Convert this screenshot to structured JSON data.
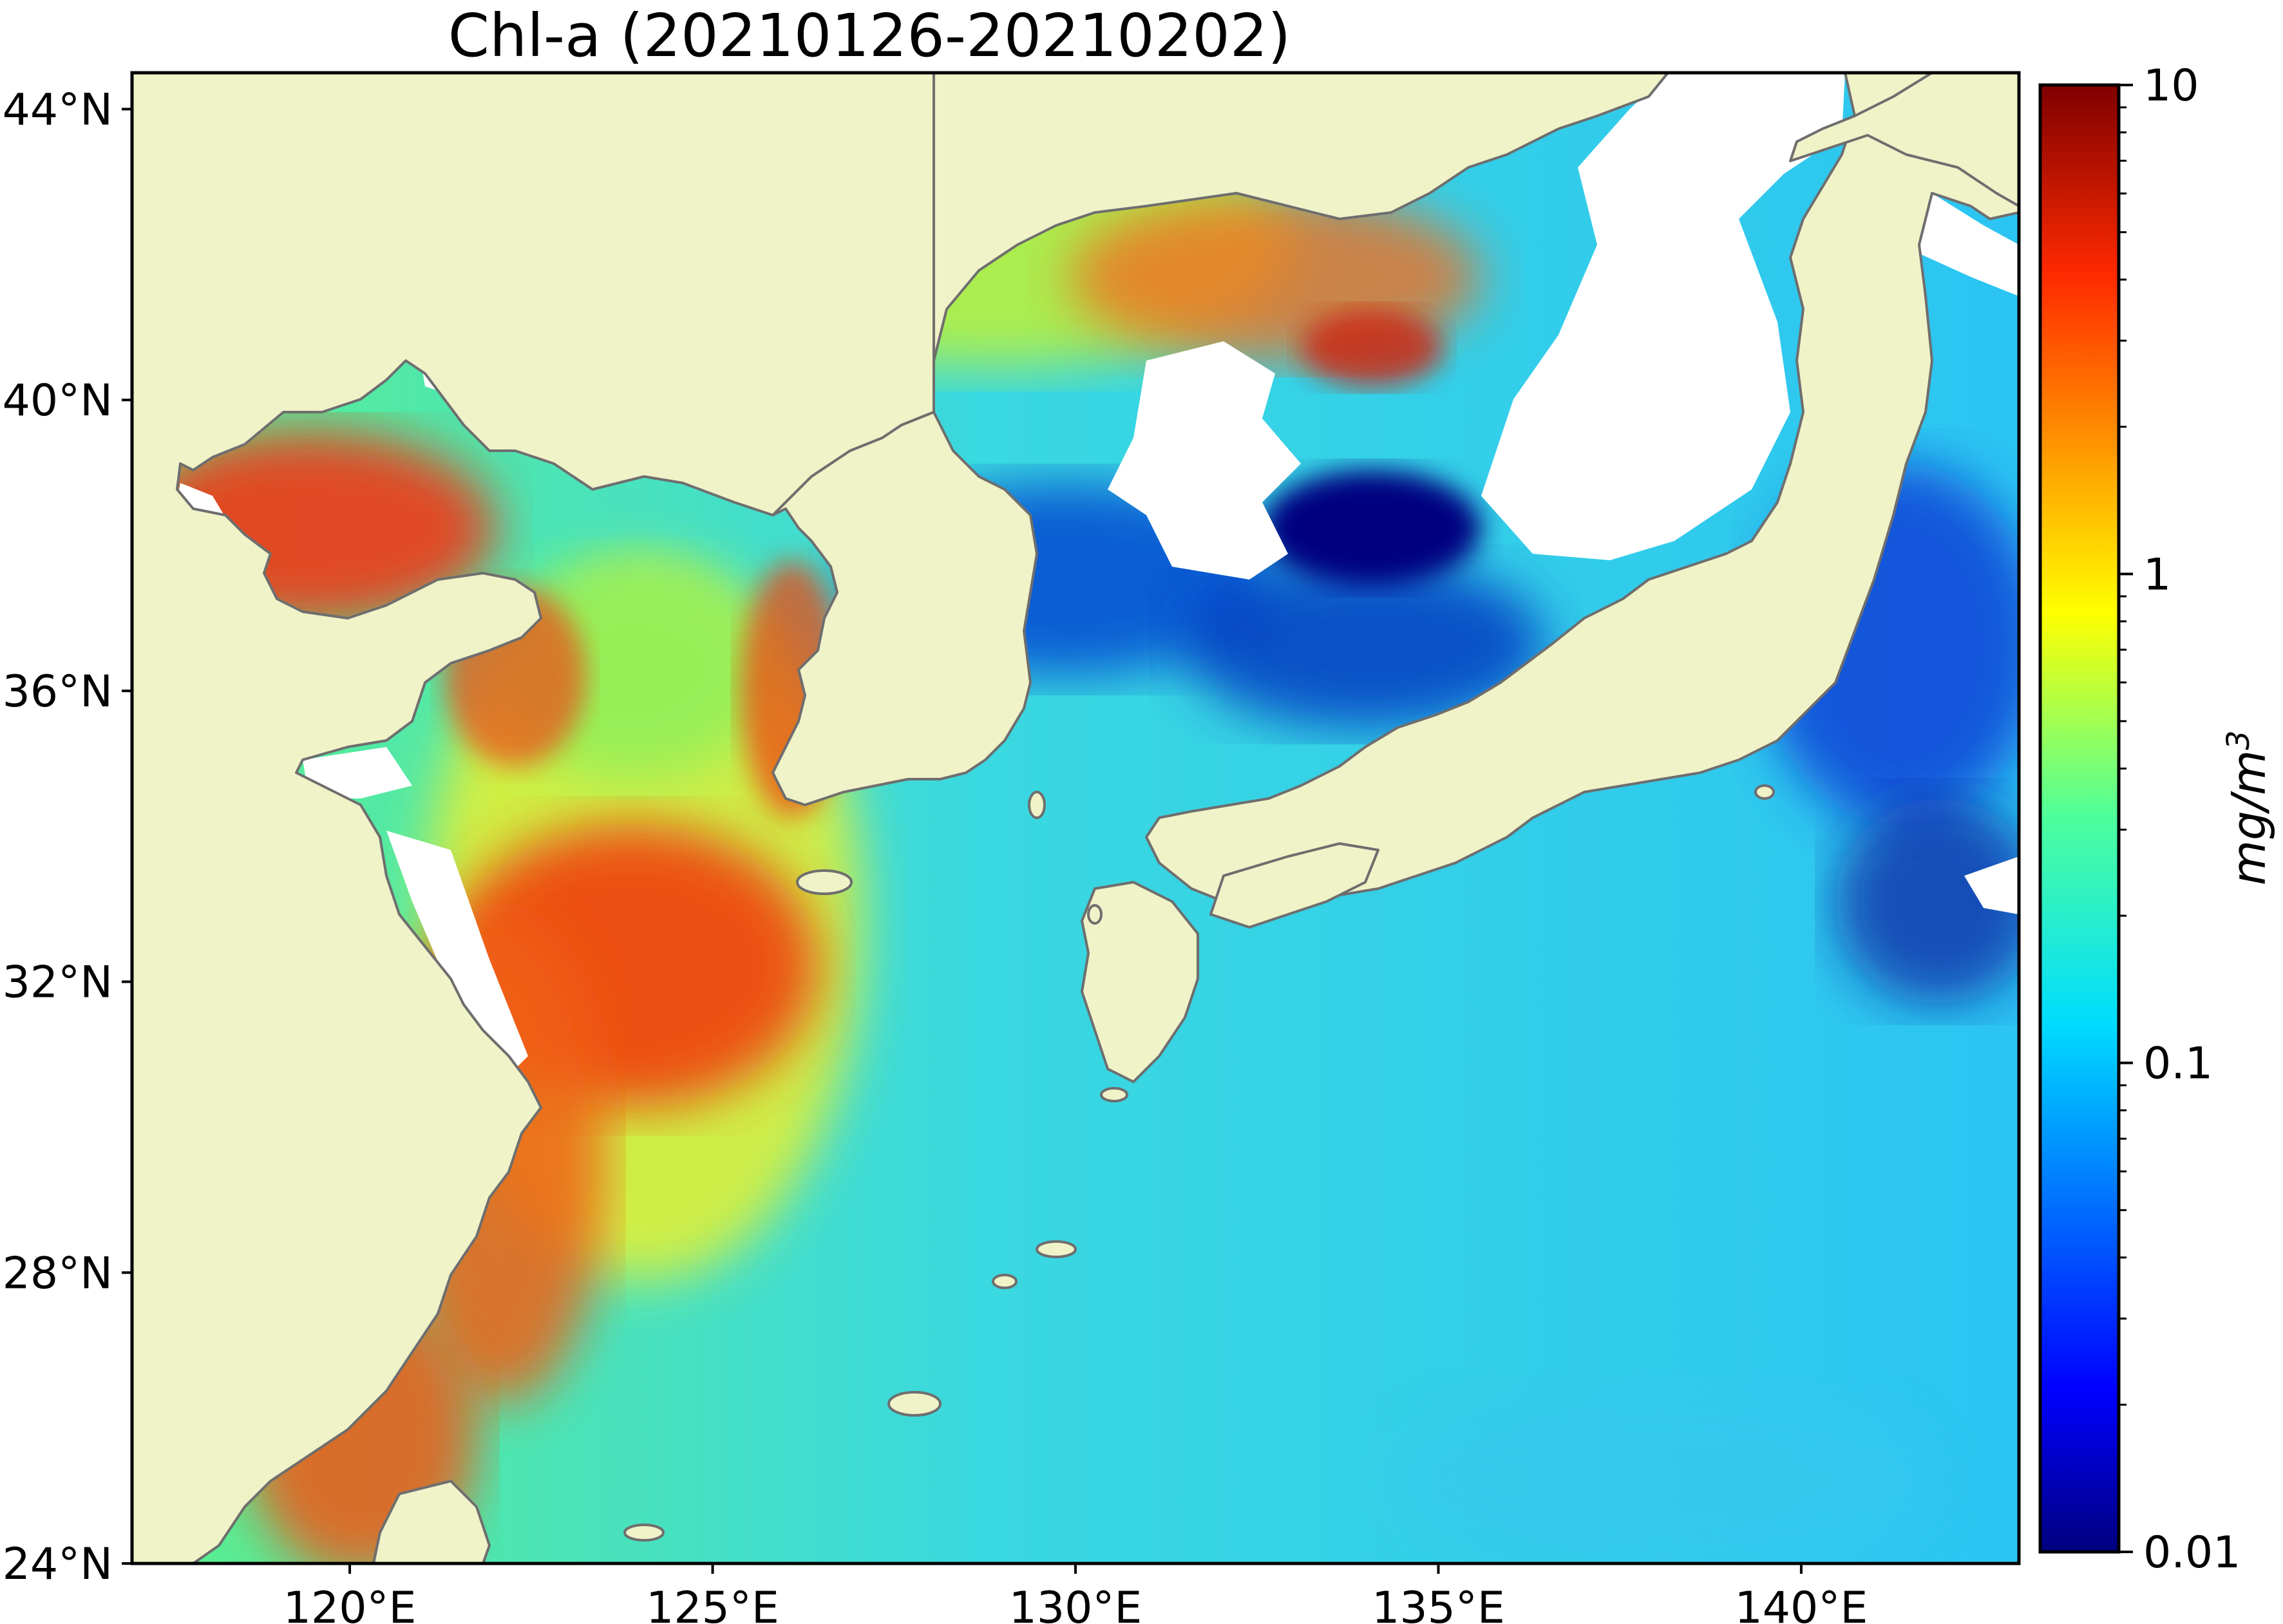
{
  "title": "Chl-a (20210126-20210202)",
  "map": {
    "extent": {
      "lon": [
        117,
        143
      ],
      "lat": [
        24,
        44.5
      ]
    },
    "lat_ticks": [
      {
        "value": 44,
        "label": "44°N"
      },
      {
        "value": 40,
        "label": "40°N"
      },
      {
        "value": 36,
        "label": "36°N"
      },
      {
        "value": 32,
        "label": "32°N"
      },
      {
        "value": 28,
        "label": "28°N"
      },
      {
        "value": 24,
        "label": "24°N"
      }
    ],
    "lon_ticks": [
      {
        "value": 120,
        "label": "120°E"
      },
      {
        "value": 125,
        "label": "125°E"
      },
      {
        "value": 130,
        "label": "130°E"
      },
      {
        "value": 135,
        "label": "135°E"
      },
      {
        "value": 140,
        "label": "140°E"
      }
    ],
    "colors": {
      "land": "#f0f2c8",
      "coastline": "#6e6e6e",
      "no_data": "#ffffff"
    }
  },
  "colorbar": {
    "scale": "log",
    "range": [
      0.01,
      10
    ],
    "colormap": "jet",
    "ticks": [
      {
        "value": 10,
        "label": "10"
      },
      {
        "value": 1,
        "label": "1"
      },
      {
        "value": 0.1,
        "label": "0.1"
      },
      {
        "value": 0.01,
        "label": "0.01"
      }
    ],
    "unit_base": "mg/m",
    "unit_exp": "3"
  }
}
